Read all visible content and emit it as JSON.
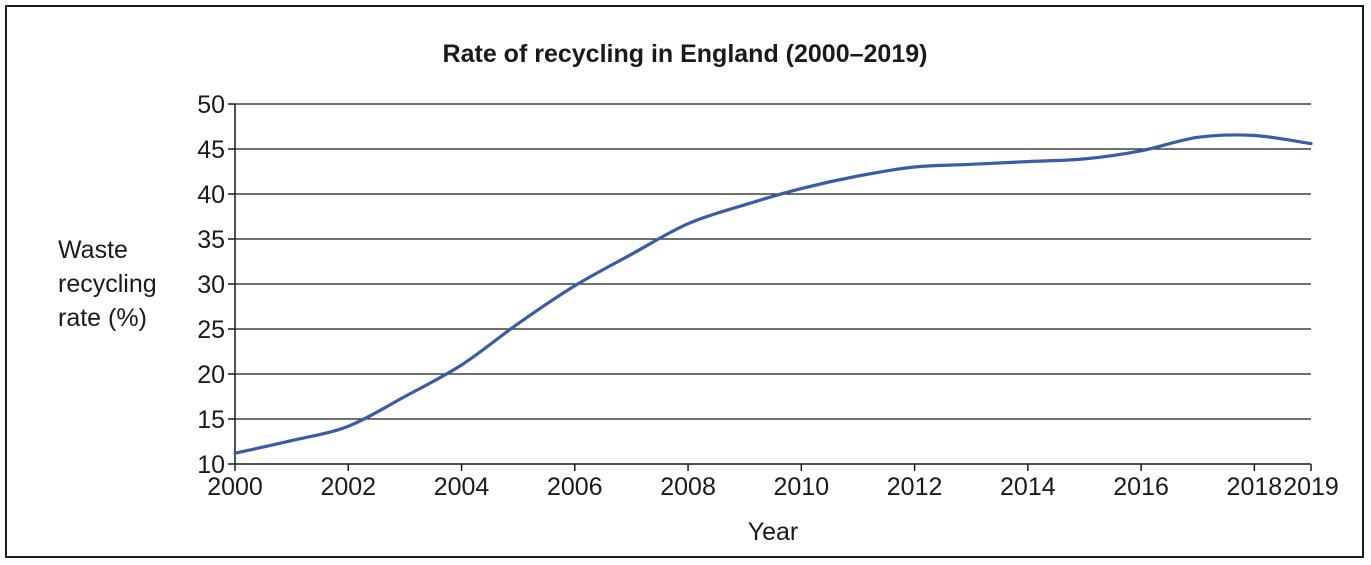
{
  "chart_data": {
    "type": "line",
    "title": "Rate of recycling in England (2000–2019)",
    "xlabel": "Year",
    "ylabel_lines": [
      "Waste",
      "recycling",
      "rate (%)"
    ],
    "xlim": [
      2000,
      2019
    ],
    "ylim": [
      10,
      50
    ],
    "x_ticks": [
      2000,
      2002,
      2004,
      2006,
      2008,
      2010,
      2012,
      2014,
      2016,
      2018,
      2019
    ],
    "y_ticks": [
      10,
      15,
      20,
      25,
      30,
      35,
      40,
      45,
      50
    ],
    "grid": "horizontal",
    "series": [
      {
        "color": "#3a5ba6",
        "x": [
          2000,
          2001,
          2002,
          2003,
          2004,
          2005,
          2006,
          2007,
          2008,
          2009,
          2010,
          2011,
          2012,
          2013,
          2014,
          2015,
          2016,
          2017,
          2018,
          2019
        ],
        "y": [
          11.2,
          12.6,
          14.2,
          17.5,
          21.0,
          25.6,
          29.8,
          33.3,
          36.7,
          38.8,
          40.6,
          42.0,
          43.0,
          43.3,
          43.6,
          43.9,
          44.8,
          46.3,
          46.5,
          45.6
        ]
      }
    ]
  }
}
